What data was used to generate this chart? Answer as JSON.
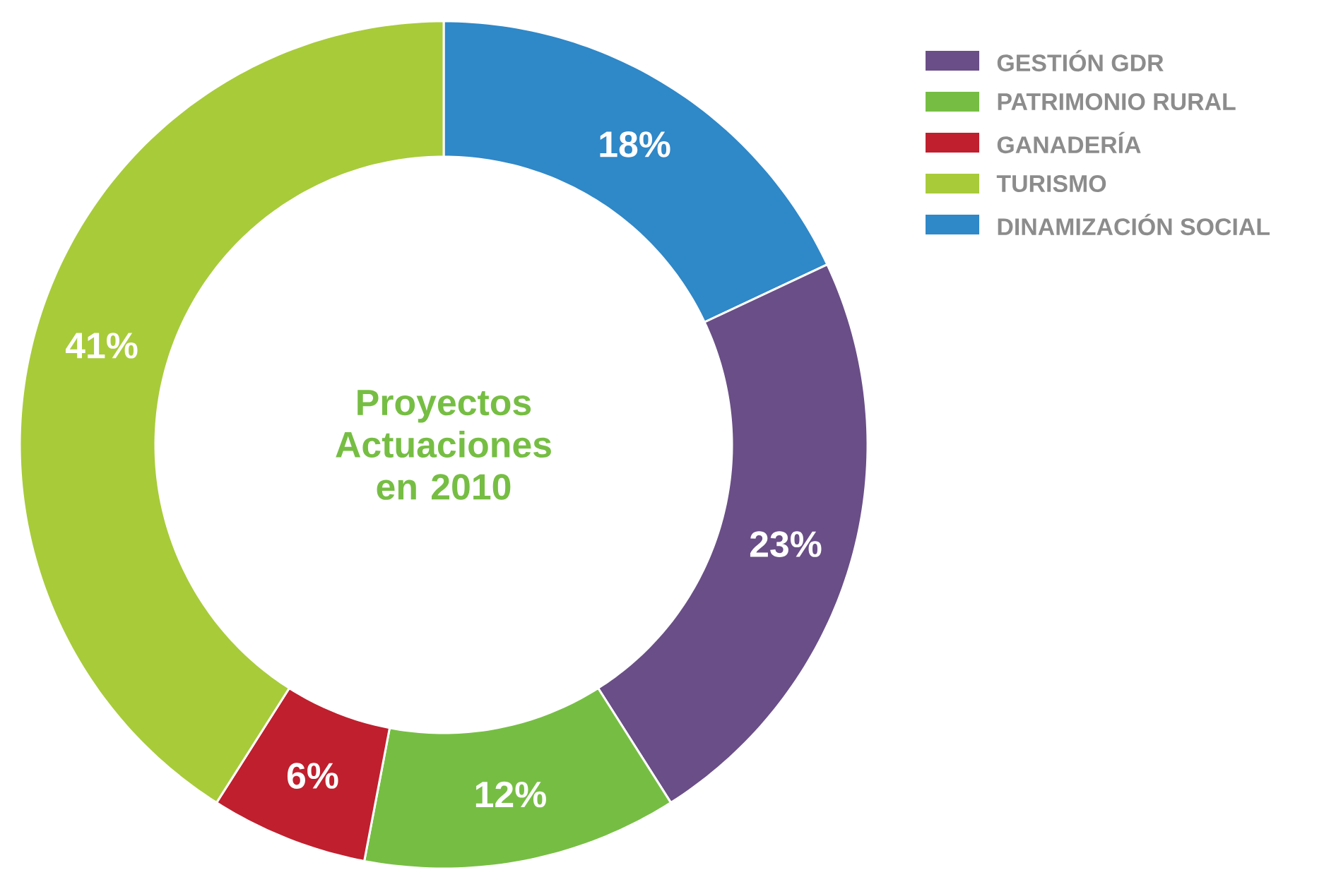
{
  "chart_data": {
    "type": "donut",
    "title": "Proyectos Actuaciones en 2010",
    "categories": [
      "GESTIÓN GDR",
      "PATRIMONIO RURAL",
      "GANADERÍA",
      "TURISMO",
      "DINAMIZACIÓN SOCIAL"
    ],
    "values": [
      23,
      12,
      6,
      41,
      18
    ],
    "colors": [
      "#6a4e87",
      "#76be43",
      "#c01f2e",
      "#a8cb3a",
      "#2f88c8"
    ],
    "value_labels": [
      "23%",
      "12%",
      "6%",
      "41%",
      "18%"
    ],
    "legend": "top right"
  }
}
